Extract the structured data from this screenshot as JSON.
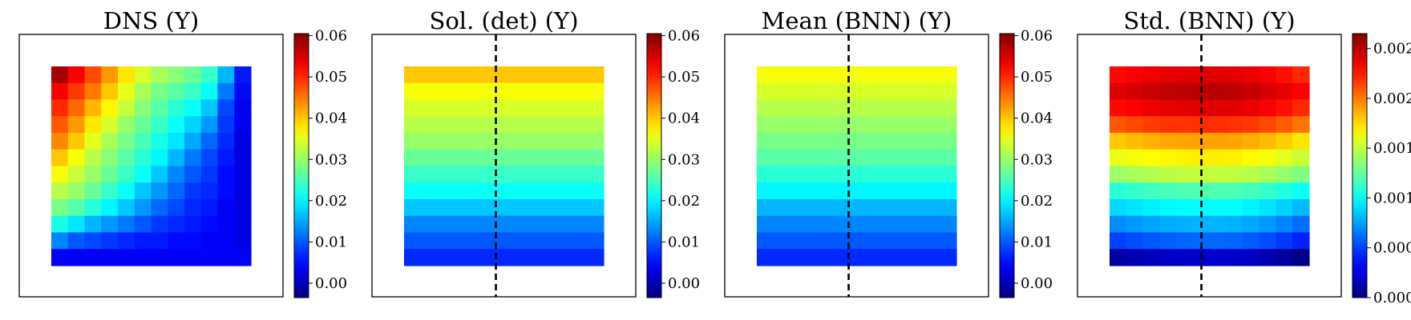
{
  "chart_data": [
    {
      "type": "heatmap",
      "title": "DNS (Y)",
      "grid": [
        [
          0.058,
          0.053,
          0.048,
          0.043,
          0.038,
          0.034,
          0.031,
          0.029,
          0.027,
          0.024,
          0.016,
          0.006
        ],
        [
          0.053,
          0.049,
          0.045,
          0.04,
          0.035,
          0.031,
          0.028,
          0.026,
          0.024,
          0.021,
          0.012,
          0.005
        ],
        [
          0.05,
          0.046,
          0.041,
          0.037,
          0.033,
          0.029,
          0.026,
          0.023,
          0.021,
          0.017,
          0.009,
          0.004
        ],
        [
          0.047,
          0.043,
          0.038,
          0.034,
          0.03,
          0.027,
          0.024,
          0.021,
          0.018,
          0.014,
          0.008,
          0.004
        ],
        [
          0.044,
          0.04,
          0.035,
          0.031,
          0.028,
          0.025,
          0.022,
          0.019,
          0.015,
          0.011,
          0.007,
          0.003
        ],
        [
          0.04,
          0.036,
          0.032,
          0.029,
          0.026,
          0.023,
          0.02,
          0.016,
          0.012,
          0.009,
          0.006,
          0.003
        ],
        [
          0.036,
          0.033,
          0.03,
          0.027,
          0.024,
          0.021,
          0.017,
          0.013,
          0.01,
          0.008,
          0.005,
          0.003
        ],
        [
          0.032,
          0.03,
          0.027,
          0.024,
          0.021,
          0.017,
          0.014,
          0.011,
          0.008,
          0.007,
          0.005,
          0.003
        ],
        [
          0.028,
          0.026,
          0.023,
          0.02,
          0.017,
          0.014,
          0.011,
          0.009,
          0.007,
          0.006,
          0.004,
          0.003
        ],
        [
          0.022,
          0.019,
          0.016,
          0.014,
          0.012,
          0.01,
          0.008,
          0.007,
          0.006,
          0.005,
          0.004,
          0.003
        ],
        [
          0.013,
          0.01,
          0.009,
          0.008,
          0.007,
          0.006,
          0.006,
          0.005,
          0.005,
          0.004,
          0.004,
          0.003
        ],
        [
          0.004,
          0.004,
          0.004,
          0.004,
          0.004,
          0.004,
          0.004,
          0.004,
          0.004,
          0.004,
          0.004,
          0.004
        ]
      ],
      "colorbar": {
        "ticks": [
          "0.06",
          "0.05",
          "0.04",
          "0.03",
          "0.02",
          "0.01",
          "0.00"
        ],
        "range": [
          -0.0035,
          0.0605
        ]
      },
      "dashed_line": false
    },
    {
      "type": "heatmap",
      "title": "Sol. (det) (Y)",
      "rows": [
        0.04,
        0.036,
        0.034,
        0.032,
        0.03,
        0.027,
        0.024,
        0.021,
        0.017,
        0.013,
        0.01,
        0.007
      ],
      "colorbar": {
        "ticks": [
          "0.06",
          "0.05",
          "0.04",
          "0.03",
          "0.02",
          "0.01",
          "0.00"
        ],
        "range": [
          -0.0035,
          0.0605
        ]
      },
      "dashed_line": true
    },
    {
      "type": "heatmap",
      "title": "Mean (BNN) (Y)",
      "rows": [
        0.036,
        0.034,
        0.032,
        0.03,
        0.028,
        0.026,
        0.023,
        0.02,
        0.016,
        0.013,
        0.01,
        0.007
      ],
      "colorbar": {
        "ticks": [
          "0.06",
          "0.05",
          "0.04",
          "0.03",
          "0.02",
          "0.01",
          "0.00"
        ],
        "range": [
          -0.0035,
          0.0605
        ]
      },
      "dashed_line": true
    },
    {
      "type": "heatmap",
      "title": "Std. (BNN) (Y)",
      "rows": [
        0.0023,
        0.0024,
        0.0023,
        0.0021,
        0.0018,
        0.0016,
        0.0014,
        0.0011,
        0.0009,
        0.0007,
        0.0005,
        0.0001
      ],
      "col_boost": [
        0,
        3e-05,
        6e-05,
        8e-05,
        9e-05,
        0.0001,
        0.0001,
        9e-05,
        7e-05,
        3e-05,
        -2e-05,
        -8e-05
      ],
      "colorbar": {
        "ticks": [
          "0.0025",
          "0.0020",
          "0.0015",
          "0.0010",
          "0.0005",
          "0.0000"
        ],
        "range": [
          0.0,
          0.00265
        ]
      },
      "dashed_line": true
    }
  ]
}
